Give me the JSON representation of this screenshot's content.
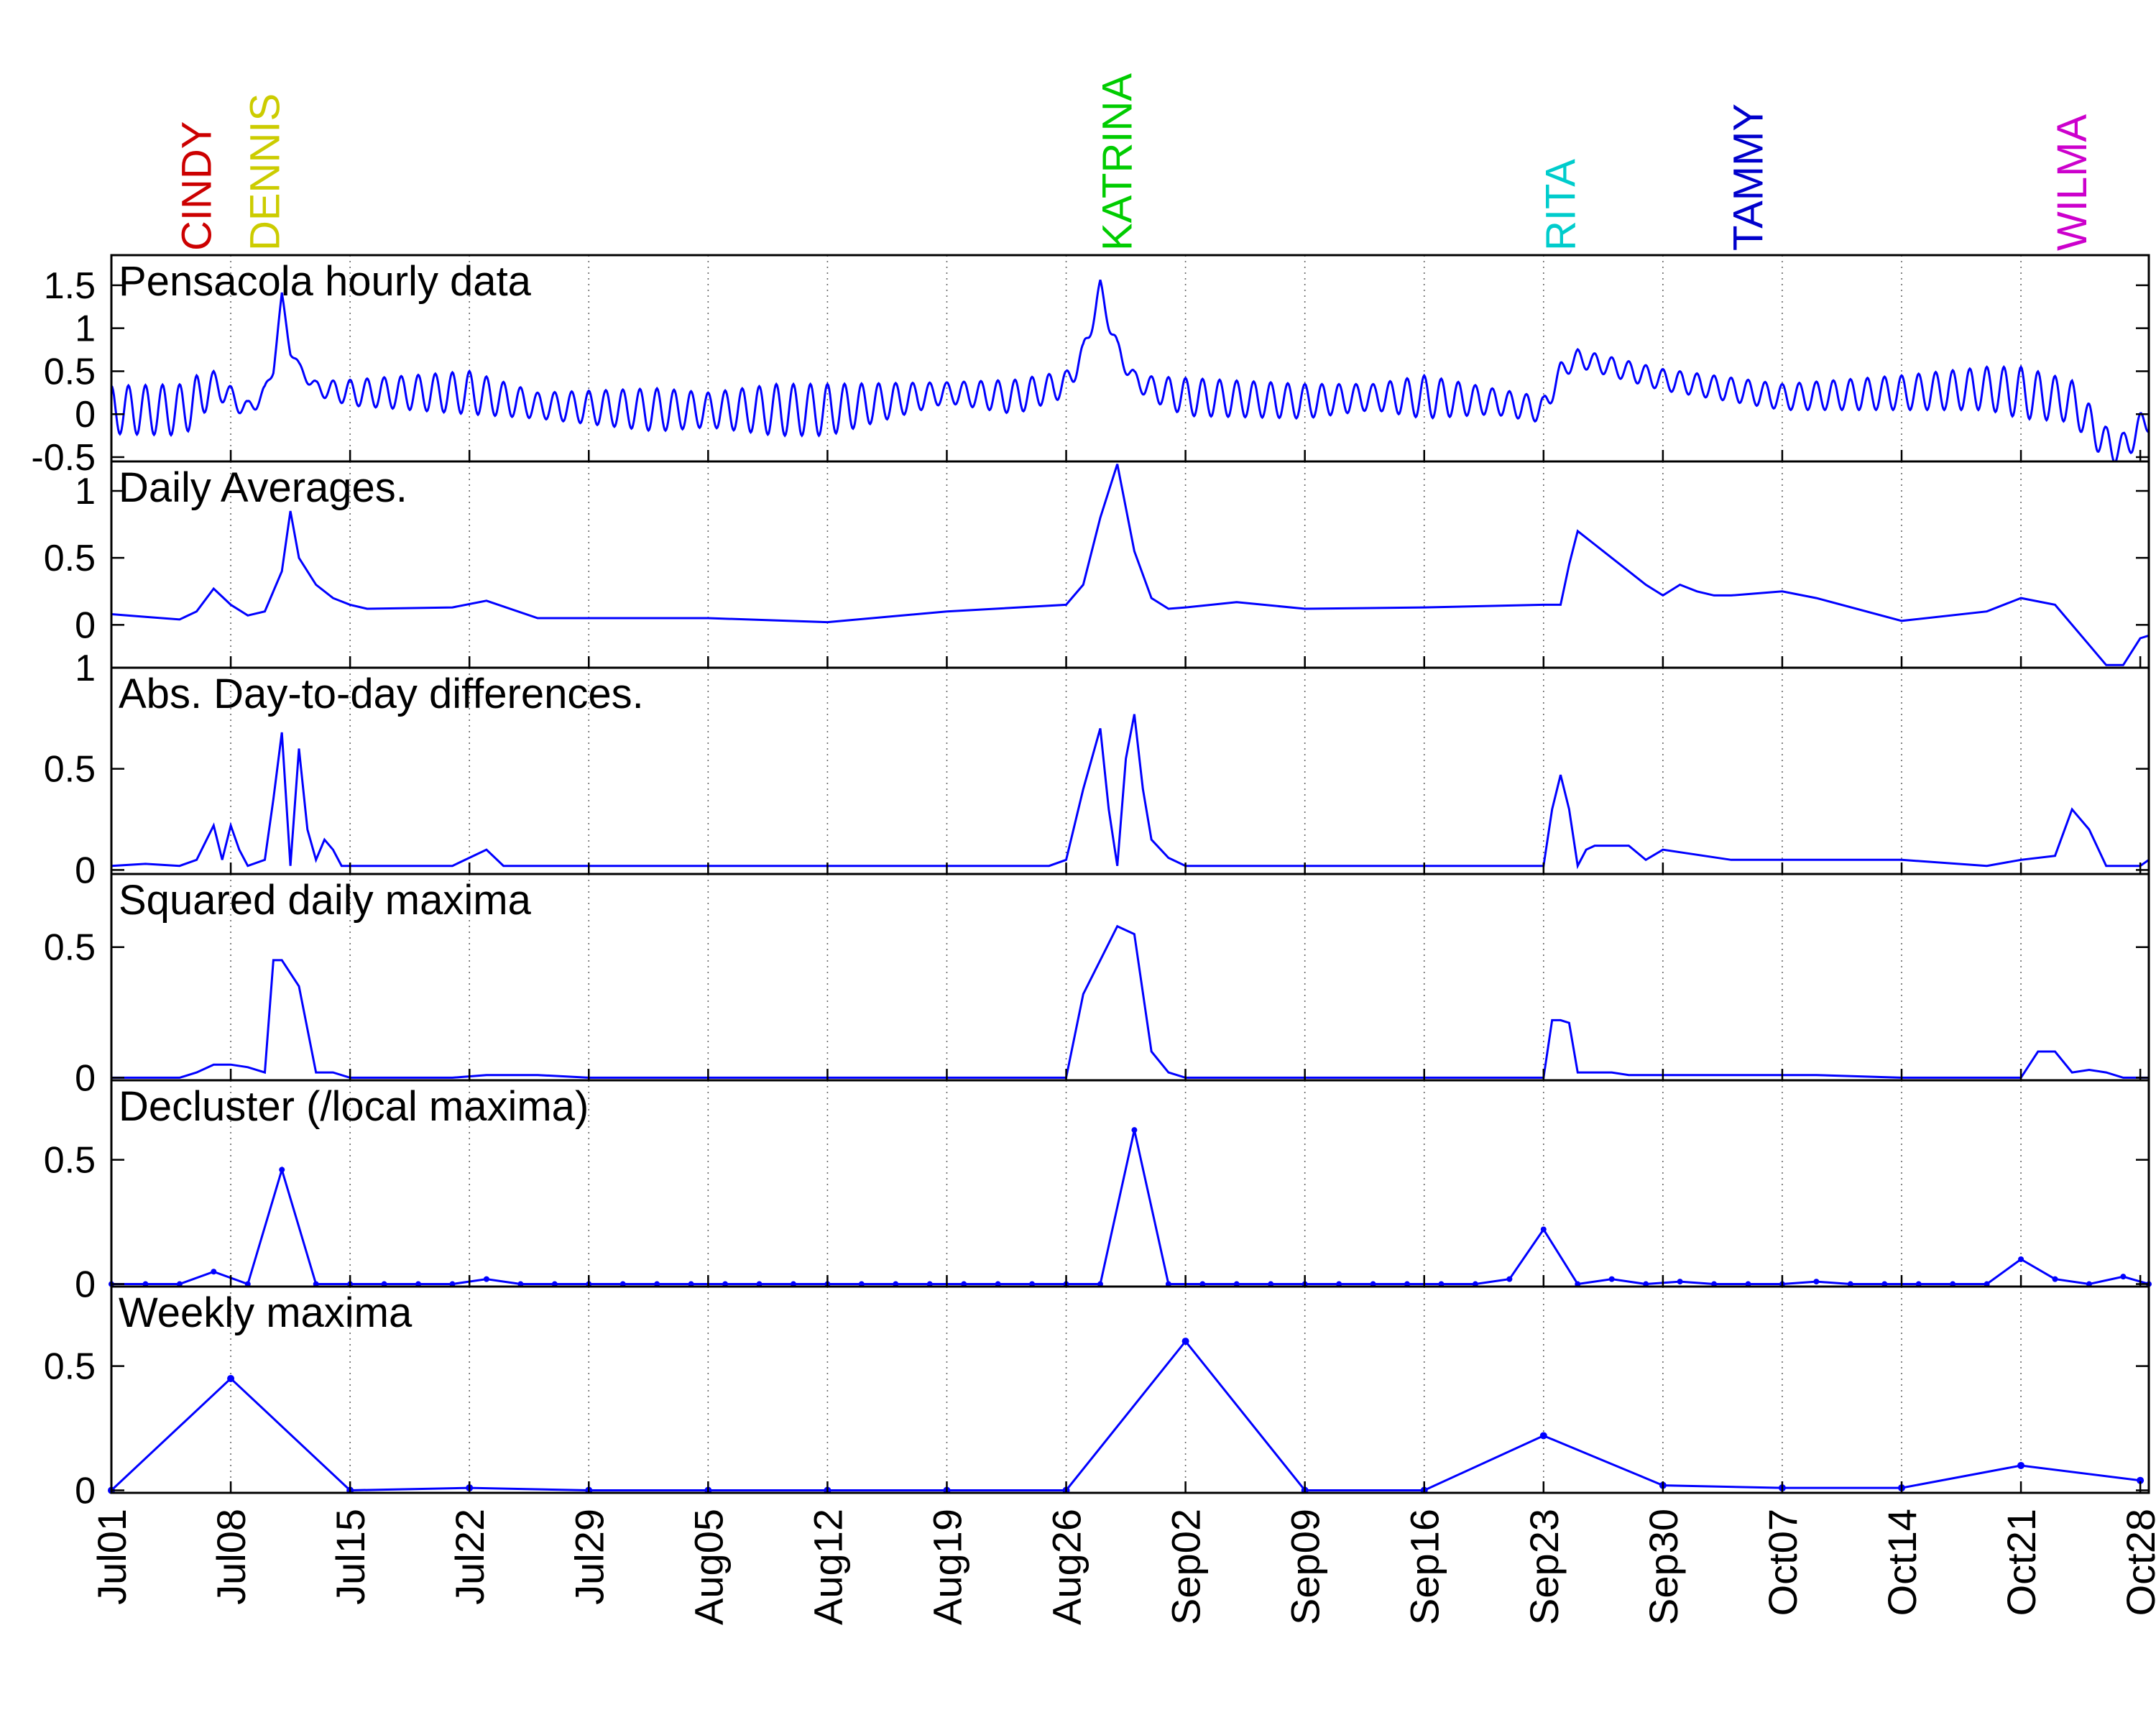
{
  "chart_data": {
    "type": "line",
    "x_axis": {
      "tick_labels": [
        "Jul01",
        "Jul08",
        "Jul15",
        "Jul22",
        "Jul29",
        "Aug05",
        "Aug12",
        "Aug19",
        "Aug26",
        "Sep02",
        "Sep09",
        "Sep16",
        "Sep23",
        "Sep30",
        "Oct07",
        "Oct14",
        "Oct21",
        "Oct28"
      ],
      "range": [
        "Jul01",
        "Oct28"
      ],
      "grid": true
    },
    "storms": [
      {
        "name": "CINDY",
        "date": "Jul06",
        "color": "#cc0000"
      },
      {
        "name": "DENNIS",
        "date": "Jul10",
        "color": "#cccc00"
      },
      {
        "name": "KATRINA",
        "date": "Aug29",
        "color": "#00cc00"
      },
      {
        "name": "RITA",
        "date": "Sep24",
        "color": "#00cccc"
      },
      {
        "name": "TAMMY",
        "date": "Oct05",
        "color": "#0000cc"
      },
      {
        "name": "WILMA",
        "date": "Oct24",
        "color": "#cc00cc"
      }
    ],
    "line_color": "#0000ff",
    "panels": [
      {
        "title": "Pensacola hourly data",
        "ylim": [
          -0.55,
          1.85
        ],
        "yticks": [
          -0.5,
          0,
          0.5,
          1,
          1.5
        ],
        "ytick_labels": [
          "-0.5",
          "0",
          "0.5",
          "1",
          "1.5"
        ],
        "kind": "hourly",
        "base_x": [
          0,
          4,
          5,
          6,
          7,
          8,
          9,
          9.5,
          10,
          10.5,
          11,
          12,
          14,
          21,
          25,
          32,
          35,
          39,
          42,
          49,
          53,
          56,
          57,
          58,
          59,
          60,
          61,
          63,
          70,
          74,
          77,
          81,
          84,
          85,
          86,
          91,
          98,
          105,
          110,
          112,
          115,
          116,
          117,
          118,
          119,
          119.5
        ],
        "base_y": [
          0.05,
          0.05,
          0.15,
          0.35,
          0.2,
          0.05,
          0.25,
          0.55,
          1.35,
          0.75,
          0.55,
          0.3,
          0.25,
          0.25,
          0.1,
          0.05,
          0.05,
          0.05,
          0.05,
          0.25,
          0.2,
          0.35,
          0.7,
          1.45,
          0.75,
          0.4,
          0.3,
          0.2,
          0.15,
          0.2,
          0.2,
          0.15,
          0.05,
          0.5,
          0.65,
          0.4,
          0.2,
          0.25,
          0.3,
          0.25,
          0.15,
          -0.1,
          -0.35,
          -0.4,
          -0.15,
          -0.05
        ],
        "amp_x": [
          0,
          5,
          6,
          8,
          9,
          11,
          14,
          21,
          25,
          32,
          35,
          39,
          42,
          49,
          53,
          56,
          57,
          60,
          63,
          70,
          74,
          77,
          81,
          84,
          85,
          90,
          98,
          105,
          110,
          112,
          119.5
        ],
        "amp_y": [
          0.28,
          0.3,
          0.15,
          0.1,
          0.08,
          0.05,
          0.15,
          0.25,
          0.15,
          0.25,
          0.2,
          0.3,
          0.3,
          0.12,
          0.2,
          0.15,
          0.12,
          0.1,
          0.22,
          0.2,
          0.15,
          0.25,
          0.15,
          0.15,
          0.1,
          0.12,
          0.15,
          0.2,
          0.25,
          0.3,
          0.15
        ]
      },
      {
        "title": "Daily Averages.",
        "ylim": [
          -0.32,
          1.22
        ],
        "yticks": [
          0,
          0.5,
          1
        ],
        "ytick_labels": [
          "0",
          "0.5",
          "1"
        ],
        "kind": "line",
        "x": [
          0,
          2,
          4,
          5,
          6,
          7,
          8,
          9,
          10,
          10.5,
          11,
          12,
          13,
          14,
          15,
          20,
          22,
          25,
          28,
          35,
          42,
          49,
          56,
          57,
          58,
          59,
          60,
          61,
          62,
          63,
          66,
          70,
          77,
          84,
          85,
          85.5,
          86,
          87,
          88,
          89,
          90,
          91,
          92,
          93,
          94,
          95,
          98,
          100,
          105,
          110,
          112,
          114,
          116,
          117,
          118,
          119,
          119.5
        ],
        "y": [
          0.08,
          0.06,
          0.04,
          0.1,
          0.27,
          0.15,
          0.07,
          0.1,
          0.4,
          0.85,
          0.5,
          0.3,
          0.2,
          0.15,
          0.12,
          0.13,
          0.18,
          0.05,
          0.05,
          0.05,
          0.02,
          0.1,
          0.15,
          0.3,
          0.8,
          1.2,
          0.55,
          0.2,
          0.12,
          0.13,
          0.17,
          0.12,
          0.13,
          0.15,
          0.15,
          0.45,
          0.7,
          0.6,
          0.5,
          0.4,
          0.3,
          0.22,
          0.3,
          0.25,
          0.22,
          0.22,
          0.25,
          0.2,
          0.03,
          0.1,
          0.2,
          0.15,
          -0.15,
          -0.3,
          -0.3,
          -0.1,
          -0.08
        ]
      },
      {
        "title": "Abs. Day-to-day differences.",
        "ylim": [
          -0.02,
          1.0
        ],
        "yticks": [
          0,
          0.5,
          1
        ],
        "ytick_labels": [
          "0",
          "0.5",
          "1"
        ],
        "kind": "line",
        "x": [
          0,
          2,
          4,
          5,
          6,
          6.5,
          7,
          7.5,
          8,
          9,
          9.5,
          10,
          10.5,
          11,
          11.5,
          12,
          12.5,
          13,
          13.5,
          14,
          15,
          20,
          22,
          23,
          25,
          28,
          35,
          42,
          49,
          55,
          56,
          57,
          58,
          58.5,
          59,
          59.5,
          60,
          60.5,
          61,
          62,
          63,
          66,
          70,
          77,
          84,
          84.5,
          85,
          85.5,
          86,
          86.5,
          87,
          88,
          89,
          90,
          91,
          95,
          100,
          105,
          110,
          112,
          114,
          115,
          116,
          117,
          118,
          119,
          119.5
        ],
        "y": [
          0.02,
          0.03,
          0.02,
          0.05,
          0.22,
          0.05,
          0.22,
          0.1,
          0.02,
          0.05,
          0.35,
          0.68,
          0.02,
          0.6,
          0.2,
          0.05,
          0.15,
          0.1,
          0.02,
          0.02,
          0.02,
          0.02,
          0.1,
          0.02,
          0.02,
          0.02,
          0.02,
          0.02,
          0.02,
          0.02,
          0.05,
          0.4,
          0.7,
          0.3,
          0.02,
          0.55,
          0.77,
          0.4,
          0.15,
          0.06,
          0.02,
          0.02,
          0.02,
          0.02,
          0.02,
          0.3,
          0.47,
          0.3,
          0.02,
          0.1,
          0.12,
          0.12,
          0.12,
          0.05,
          0.1,
          0.05,
          0.05,
          0.05,
          0.02,
          0.05,
          0.07,
          0.3,
          0.2,
          0.02,
          0.02,
          0.02,
          0.05
        ]
      },
      {
        "title": "Squared daily maxima",
        "ylim": [
          -0.01,
          0.78
        ],
        "yticks": [
          0,
          0.5
        ],
        "ytick_labels": [
          "0",
          "0.5"
        ],
        "kind": "line",
        "x": [
          0,
          4,
          5,
          6,
          7,
          8,
          9,
          9.5,
          10,
          11,
          12,
          13,
          14,
          15,
          20,
          22,
          25,
          28,
          35,
          42,
          49,
          56,
          57,
          58,
          59,
          60,
          61,
          62,
          63,
          70,
          77,
          84,
          84.5,
          85,
          85.5,
          86,
          87,
          88,
          89,
          90,
          91,
          95,
          100,
          105,
          110,
          112,
          113,
          114,
          115,
          116,
          117,
          118,
          119,
          119.5
        ],
        "y": [
          0,
          0,
          0.02,
          0.05,
          0.05,
          0.04,
          0.02,
          0.45,
          0.45,
          0.35,
          0.02,
          0.02,
          0,
          0,
          0,
          0.01,
          0.01,
          0,
          0,
          0,
          0,
          0,
          0.32,
          0.45,
          0.58,
          0.55,
          0.1,
          0.02,
          0,
          0,
          0,
          0,
          0.22,
          0.22,
          0.21,
          0.02,
          0.02,
          0.02,
          0.01,
          0.01,
          0.01,
          0.01,
          0.01,
          0,
          0,
          0,
          0.1,
          0.1,
          0.02,
          0.03,
          0.02,
          0,
          0,
          0
        ]
      },
      {
        "title": "Decluster (/local maxima)",
        "ylim": [
          -0.01,
          0.82
        ],
        "yticks": [
          0,
          0.5
        ],
        "ytick_labels": [
          "0",
          "0.5"
        ],
        "kind": "stem",
        "x": [
          0,
          2,
          4,
          6,
          8,
          10,
          12,
          14,
          16,
          18,
          20,
          22,
          24,
          26,
          28,
          30,
          32,
          34,
          36,
          38,
          40,
          42,
          44,
          46,
          48,
          50,
          52,
          54,
          56,
          58,
          60,
          62,
          64,
          66,
          68,
          70,
          72,
          74,
          76,
          78,
          80,
          82,
          84,
          86,
          88,
          90,
          92,
          94,
          96,
          98,
          100,
          102,
          104,
          106,
          108,
          110,
          112,
          114,
          116,
          118,
          119.5
        ],
        "y": [
          0,
          0,
          0,
          0.05,
          0,
          0.46,
          0,
          0,
          0,
          0,
          0,
          0.02,
          0,
          0,
          0,
          0,
          0,
          0,
          0,
          0,
          0,
          0,
          0,
          0,
          0,
          0,
          0,
          0,
          0,
          0,
          0.62,
          0,
          0,
          0,
          0,
          0,
          0,
          0,
          0,
          0,
          0,
          0.02,
          0.22,
          0,
          0.02,
          0,
          0.01,
          0,
          0,
          0,
          0.01,
          0,
          0,
          0,
          0,
          0,
          0.1,
          0.02,
          0,
          0.03,
          0
        ]
      },
      {
        "title": "Weekly maxima",
        "ylim": [
          -0.01,
          0.82
        ],
        "yticks": [
          0,
          0.5
        ],
        "ytick_labels": [
          "0",
          "0.5"
        ],
        "kind": "markers",
        "x": [
          0,
          7,
          14,
          21,
          28,
          35,
          42,
          49,
          56,
          63,
          70,
          77,
          84,
          91,
          98,
          105,
          112,
          119
        ],
        "y": [
          0,
          0.45,
          0,
          0.01,
          0,
          0,
          0,
          0,
          0,
          0.6,
          0,
          0,
          0.22,
          0.02,
          0.01,
          0.01,
          0.1,
          0.04
        ]
      }
    ]
  }
}
